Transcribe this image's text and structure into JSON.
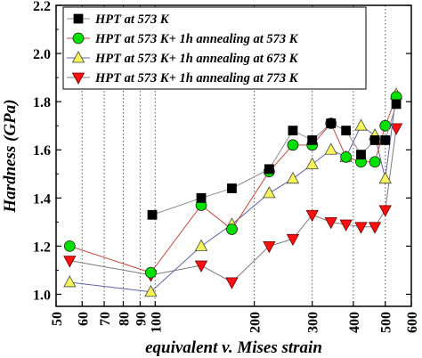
{
  "chart_data": {
    "type": "scatter",
    "xlabel": "equivalent v. Mises strain",
    "ylabel": "Hardness (GPa)",
    "x_scale": "log",
    "xlim": [
      50,
      600
    ],
    "ylim": [
      0.95,
      2.2
    ],
    "x_ticks": [
      50,
      60,
      70,
      80,
      90,
      100,
      200,
      300,
      400,
      500,
      600
    ],
    "y_ticks": [
      1.0,
      1.2,
      1.4,
      1.6,
      1.8,
      2.0,
      2.2
    ],
    "y_tick_labels": [
      "1.0",
      "1.2",
      "1.4",
      "1.6",
      "1.8",
      "2.0",
      "2.2"
    ],
    "vertical_reference_lines": [
      60,
      70,
      80,
      90,
      100,
      200,
      300,
      400,
      500
    ],
    "legend_position": "top-left",
    "series": [
      {
        "name": "HPT at 573 K",
        "marker": "square",
        "fill": "#000000",
        "line": "#8a8a8a",
        "x": [
          98,
          138,
          171,
          222,
          262,
          300,
          342,
          380,
          422,
          465,
          500,
          540
        ],
        "y": [
          1.33,
          1.4,
          1.44,
          1.52,
          1.68,
          1.64,
          1.71,
          1.68,
          1.58,
          1.64,
          1.64,
          1.79
        ]
      },
      {
        "name": "HPT at 573 K+ 1h annealing at 573 K",
        "marker": "circle",
        "fill": "#00e000",
        "line": "#c24a3a",
        "x": [
          55,
          97,
          138,
          171,
          222,
          262,
          300,
          342,
          380,
          422,
          465,
          500,
          540
        ],
        "y": [
          1.2,
          1.09,
          1.37,
          1.27,
          1.51,
          1.62,
          1.62,
          1.71,
          1.57,
          1.55,
          1.55,
          1.7,
          1.82
        ]
      },
      {
        "name": "HPT at 573 K+ 1h annealing at 673 K",
        "marker": "triangle-up",
        "fill": "#f5f55a",
        "line": "#6060a0",
        "x": [
          55,
          97,
          138,
          171,
          222,
          262,
          300,
          342,
          380,
          422,
          465,
          500,
          540
        ],
        "y": [
          1.05,
          1.01,
          1.2,
          1.29,
          1.42,
          1.48,
          1.54,
          1.6,
          1.57,
          1.7,
          1.66,
          1.48,
          1.83
        ]
      },
      {
        "name": "HPT at 573 K+ 1h annealing at 773 K",
        "marker": "triangle-down",
        "fill": "#ff1010",
        "line": "#7a7a7a",
        "x": [
          55,
          97,
          138,
          171,
          222,
          262,
          300,
          342,
          380,
          422,
          465,
          500,
          540
        ],
        "y": [
          1.14,
          1.08,
          1.12,
          1.05,
          1.2,
          1.23,
          1.33,
          1.3,
          1.29,
          1.28,
          1.28,
          1.35,
          1.69
        ]
      }
    ]
  }
}
